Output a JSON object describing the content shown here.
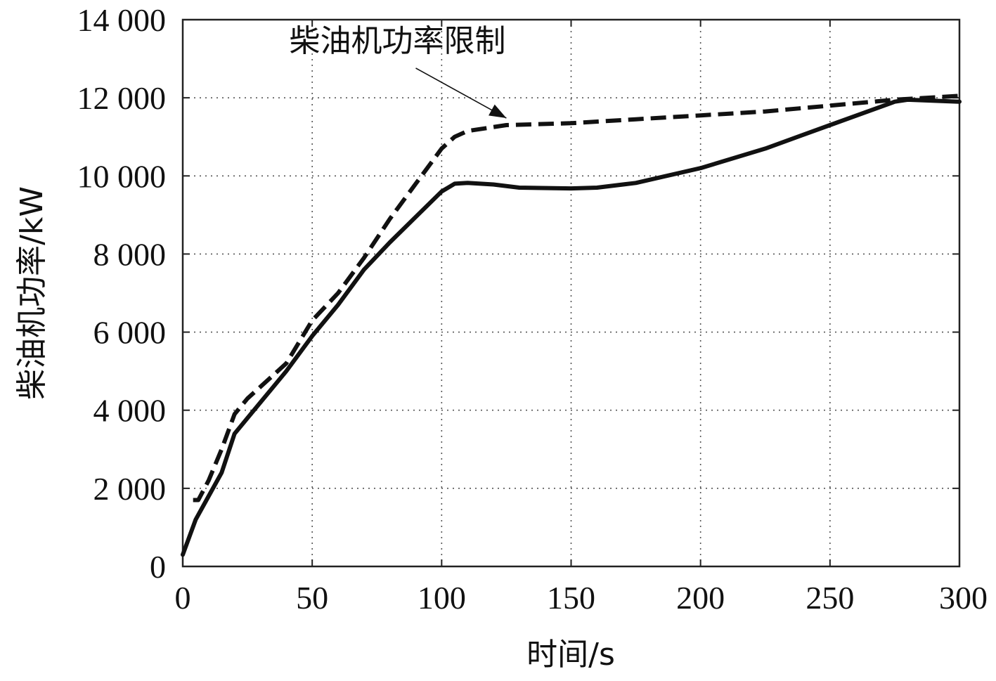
{
  "chart_data": {
    "type": "line",
    "title": "",
    "xlabel": "时间/s",
    "ylabel": "柴油机功率/kW",
    "xlim": [
      0,
      300
    ],
    "ylim": [
      0,
      14000
    ],
    "x_ticks": [
      0,
      50,
      100,
      150,
      200,
      250,
      300
    ],
    "x_tick_labels": [
      "0",
      "50",
      "100",
      "150",
      "200",
      "250",
      "300"
    ],
    "y_ticks": [
      0,
      2000,
      4000,
      6000,
      8000,
      10000,
      12000,
      14000
    ],
    "y_tick_labels": [
      "0",
      "2 000",
      "4 000",
      "6 000",
      "8 000",
      "10 000",
      "12 000",
      "14 000"
    ],
    "grid": true,
    "annotation": {
      "text": "柴油机功率限制",
      "points_to": {
        "x": 125,
        "y": 11300
      },
      "text_at": {
        "x": 90,
        "y": 13300
      }
    },
    "series": [
      {
        "style": "dashed",
        "x": [
          4,
          6,
          10,
          15,
          20,
          25,
          30,
          40,
          50,
          60,
          70,
          80,
          90,
          100,
          105,
          110,
          125,
          150,
          175,
          200,
          225,
          250,
          275,
          300
        ],
        "y": [
          1700,
          1700,
          2200,
          3000,
          3900,
          4300,
          4600,
          5200,
          6300,
          7000,
          7900,
          8900,
          9800,
          10700,
          11000,
          11150,
          11300,
          11350,
          11450,
          11550,
          11650,
          11800,
          11950,
          12050
        ]
      },
      {
        "style": "solid",
        "x": [
          0,
          5,
          10,
          15,
          20,
          25,
          30,
          40,
          50,
          60,
          70,
          80,
          90,
          100,
          105,
          110,
          120,
          130,
          150,
          160,
          175,
          200,
          225,
          250,
          275,
          280,
          300
        ],
        "y": [
          300,
          1200,
          1800,
          2400,
          3400,
          3800,
          4200,
          5000,
          5900,
          6700,
          7600,
          8300,
          8950,
          9600,
          9800,
          9820,
          9780,
          9700,
          9680,
          9700,
          9820,
          10200,
          10700,
          11300,
          11900,
          11950,
          11900
        ]
      }
    ]
  }
}
